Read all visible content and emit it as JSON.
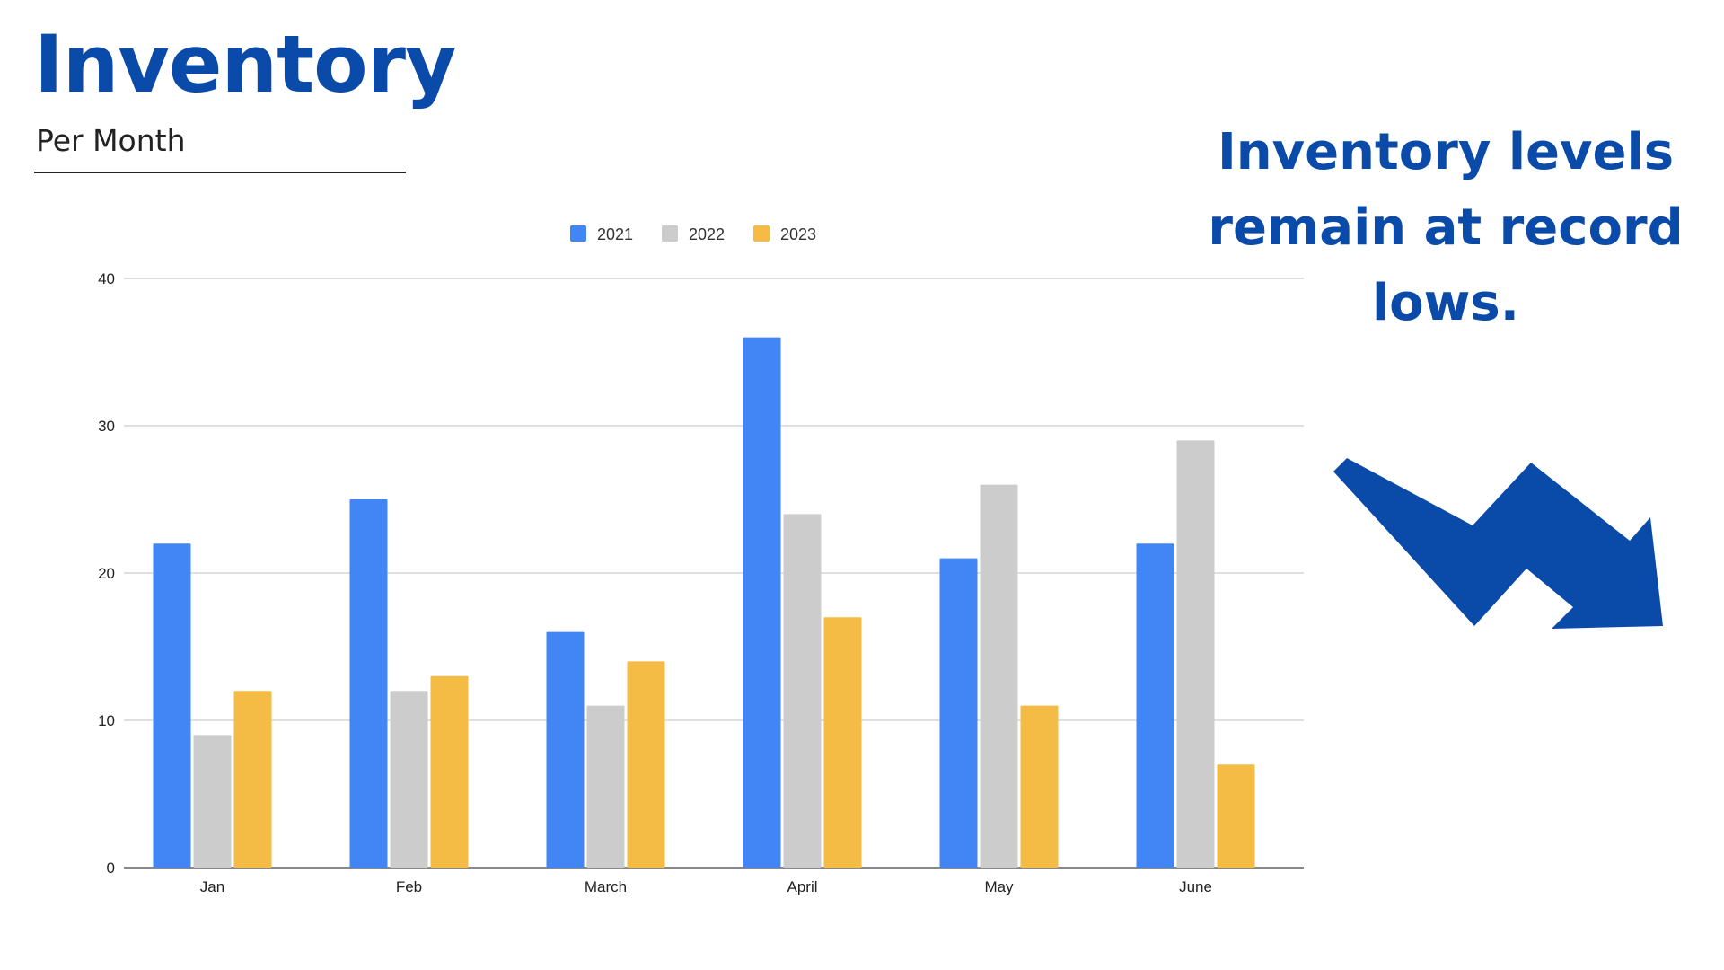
{
  "header": {
    "title": "Inventory",
    "subtitle": "Per Month"
  },
  "callout": {
    "text": "Inventory levels remain at record lows."
  },
  "colors": {
    "accent": "#0a4aa8",
    "series_2021": "#4285f4",
    "series_2022": "#cccccc",
    "series_2023": "#f4bb45"
  },
  "icons": {
    "trend": "downward-zigzag-arrow-icon"
  },
  "chart_data": {
    "type": "bar",
    "categories": [
      "Jan",
      "Feb",
      "March",
      "April",
      "May",
      "June"
    ],
    "series": [
      {
        "name": "2021",
        "values": [
          22,
          25,
          16,
          36,
          21,
          22
        ]
      },
      {
        "name": "2022",
        "values": [
          9,
          12,
          11,
          24,
          26,
          29
        ]
      },
      {
        "name": "2023",
        "values": [
          12,
          13,
          14,
          17,
          11,
          7
        ]
      }
    ],
    "ylim": [
      0,
      40
    ],
    "yticks": [
      0,
      10,
      20,
      30,
      40
    ],
    "grid": true,
    "legend": "top-center"
  }
}
